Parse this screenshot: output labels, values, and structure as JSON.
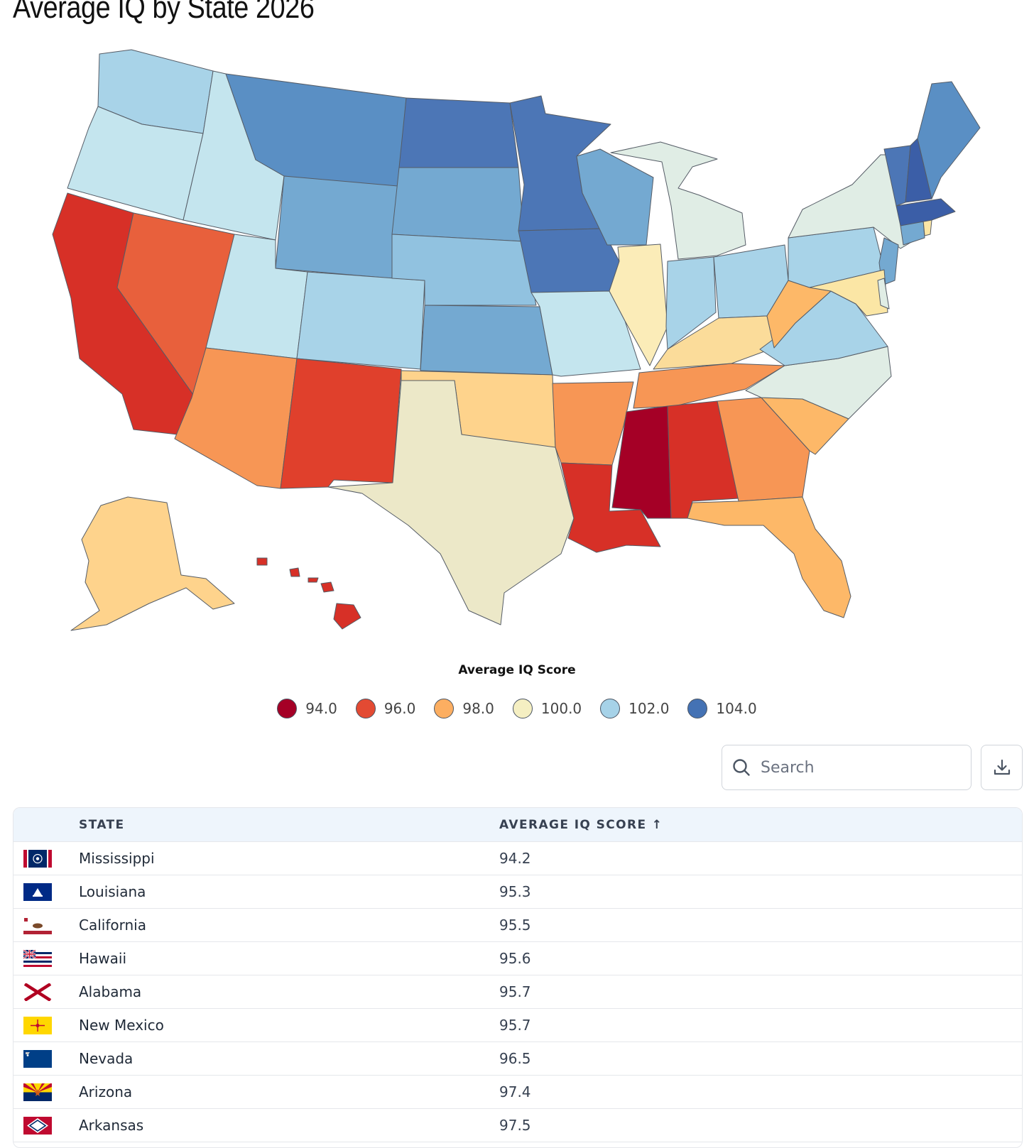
{
  "page": {
    "title": "Average IQ by State 2026"
  },
  "colors": {
    "mississippi": "#a50026",
    "deep_red": "#d73027",
    "red_orange": "#e8603c",
    "orange": "#f79655",
    "light_orange": "#fdb868",
    "peach": "#fed38c",
    "pale_yellow": "#fbe6a5",
    "beige": "#ece8c8",
    "mint": "#e0ede5",
    "pale_blue": "#c4e5ee",
    "light_blue": "#a8d3e8",
    "sky_blue": "#91c2e0",
    "mid_blue": "#74a9d1",
    "blue": "#5a8fc4",
    "dark_blue": "#4c76b6",
    "navy": "#3b5ea7"
  },
  "map": {
    "legend_title": "Average IQ Score",
    "legend": [
      {
        "label": "94.0",
        "color": "#a50026"
      },
      {
        "label": "96.0",
        "color": "#e34a33"
      },
      {
        "label": "98.0",
        "color": "#fcae61"
      },
      {
        "label": "100.0",
        "color": "#f5efc2"
      },
      {
        "label": "102.0",
        "color": "#a6d2e8"
      },
      {
        "label": "104.0",
        "color": "#4472b4"
      }
    ]
  },
  "toolbar": {
    "search_placeholder": "Search"
  },
  "table": {
    "columns": [
      "STATE",
      "AVERAGE IQ SCORE ↑"
    ],
    "rows": [
      {
        "state": "Mississippi",
        "score": "94.2"
      },
      {
        "state": "Louisiana",
        "score": "95.3"
      },
      {
        "state": "California",
        "score": "95.5"
      },
      {
        "state": "Hawaii",
        "score": "95.6"
      },
      {
        "state": "Alabama",
        "score": "95.7"
      },
      {
        "state": "New Mexico",
        "score": "95.7"
      },
      {
        "state": "Nevada",
        "score": "96.5"
      },
      {
        "state": "Arizona",
        "score": "97.4"
      },
      {
        "state": "Arkansas",
        "score": "97.5"
      }
    ]
  }
}
